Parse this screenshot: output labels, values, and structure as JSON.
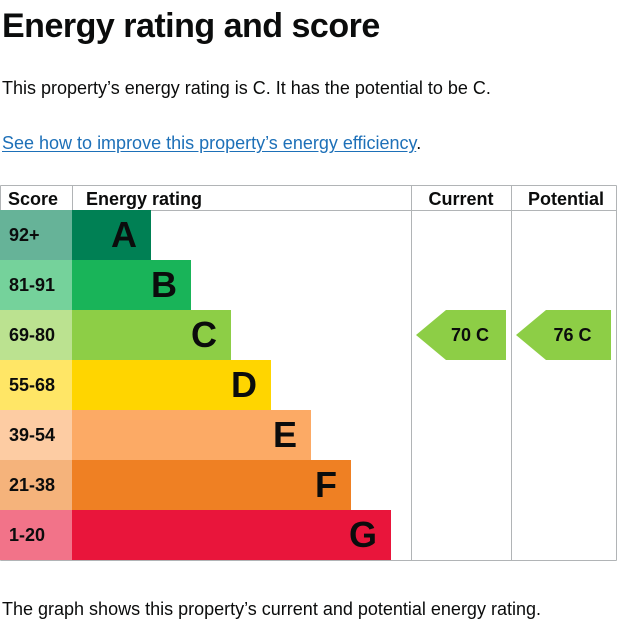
{
  "page": {
    "title": "Energy rating and score",
    "summary": "This property’s energy rating is C. It has the potential to be C.",
    "improve_link": "See how to improve this property’s energy efficiency",
    "improve_suffix": ".",
    "caption": "The graph shows this property’s current and potential energy rating."
  },
  "chart_data": {
    "type": "bar",
    "title": "",
    "headers": {
      "score": "Score",
      "rating": "Energy rating",
      "current": "Current",
      "potential": "Potential"
    },
    "bands": [
      {
        "letter": "A",
        "score": "92+",
        "bar_color": "#008054",
        "score_color": "#66b398"
      },
      {
        "letter": "B",
        "score": "81-91",
        "bar_color": "#19b459",
        "score_color": "#75d29b"
      },
      {
        "letter": "C",
        "score": "69-80",
        "bar_color": "#8dce46",
        "score_color": "#bbe290"
      },
      {
        "letter": "D",
        "score": "55-68",
        "bar_color": "#ffd500",
        "score_color": "#ffe666"
      },
      {
        "letter": "E",
        "score": "39-54",
        "bar_color": "#fcaa65",
        "score_color": "#fdcca3"
      },
      {
        "letter": "F",
        "score": "21-38",
        "bar_color": "#ef8023",
        "score_color": "#f5b37b"
      },
      {
        "letter": "G",
        "score": "1-20",
        "bar_color": "#e9153b",
        "score_color": "#f27389"
      }
    ],
    "current": {
      "score": 70,
      "band": "C",
      "label": "70  C",
      "color": "#8dce46"
    },
    "potential": {
      "score": 76,
      "band": "C",
      "label": "76  C",
      "color": "#8dce46"
    }
  }
}
